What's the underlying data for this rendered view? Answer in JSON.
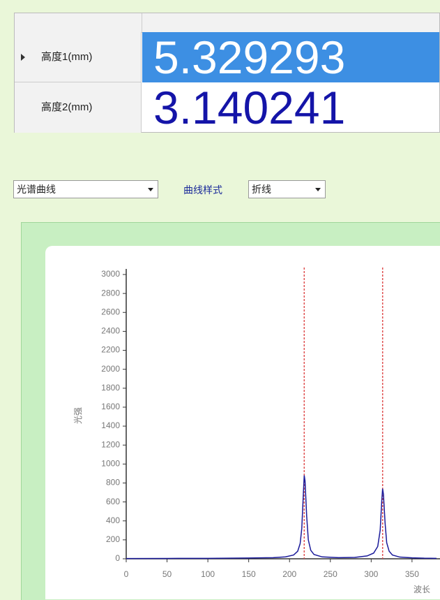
{
  "table": {
    "rows": [
      [
        "高度1(mm)",
        "5.329293"
      ],
      [
        "高度2(mm)",
        "3.140241"
      ]
    ]
  },
  "controls": {
    "curve_select": "光谱曲线",
    "style_label": "曲线样式",
    "style_select": "折线"
  },
  "chart_data": {
    "type": "line",
    "xlabel": "波长",
    "ylabel": "光强",
    "x": [
      0,
      50,
      100,
      150,
      180,
      195,
      205,
      210,
      213,
      215,
      217,
      218,
      219,
      221,
      223,
      226,
      230,
      240,
      260,
      280,
      295,
      303,
      308,
      311,
      313,
      314,
      315,
      317,
      319,
      322,
      326,
      335,
      350,
      365,
      380
    ],
    "series": [
      {
        "color": "#1a1a9a",
        "values": [
          3,
          4,
          5,
          8,
          12,
          20,
          40,
          80,
          160,
          320,
          700,
          880,
          820,
          450,
          200,
          90,
          45,
          20,
          12,
          15,
          30,
          60,
          130,
          300,
          620,
          740,
          680,
          380,
          170,
          80,
          40,
          18,
          10,
          6,
          5
        ]
      }
    ],
    "markers": [
      218,
      314
    ],
    "marker_color": "#e05050",
    "xlim": [
      0,
      380
    ],
    "ylim": [
      0,
      3000
    ],
    "xticks": [
      0,
      50,
      100,
      150,
      200,
      250,
      300,
      350
    ],
    "yticks": [
      0,
      200,
      400,
      600,
      800,
      1000,
      1200,
      1400,
      1600,
      1800,
      2000,
      2200,
      2400,
      2600,
      2800,
      3000
    ],
    "grid": false
  }
}
